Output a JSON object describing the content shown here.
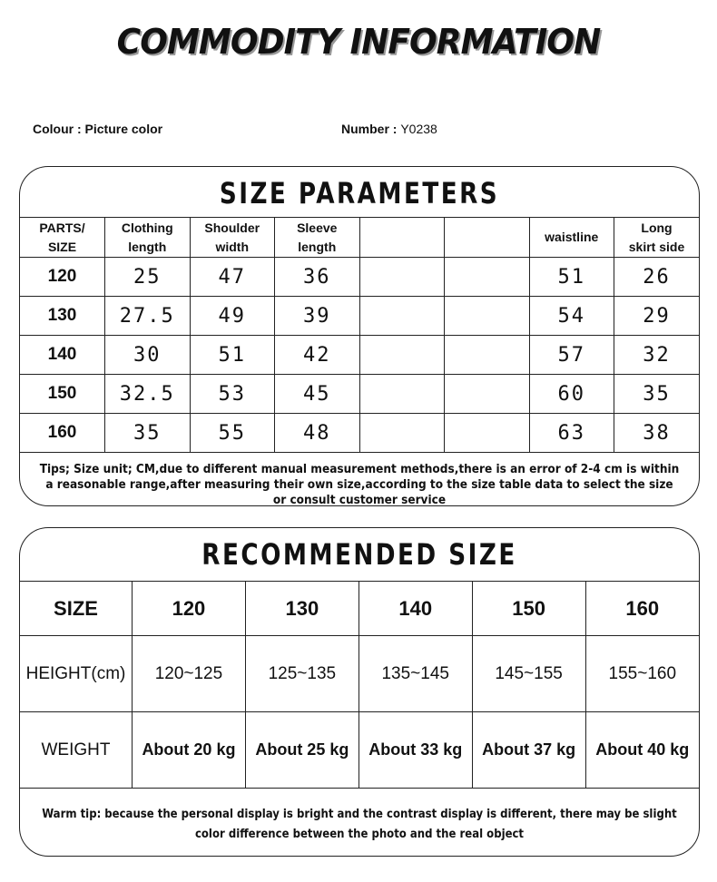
{
  "title": "COMMODITY INFORMATION",
  "colour": "Colour : Picture color",
  "number_label": "Number : ",
  "number": "Y0238",
  "size_parameters": {
    "title": "SIZE PARAMETERS",
    "headers": [
      [
        "PARTS/",
        "SIZE"
      ],
      [
        "Clothing",
        "length"
      ],
      [
        "Shoulder",
        "width"
      ],
      [
        "Sleeve",
        "length"
      ],
      [
        "",
        ""
      ],
      [
        "",
        ""
      ],
      [
        "waistline",
        ""
      ],
      [
        "Long",
        "skirt side"
      ]
    ],
    "rows": [
      [
        "120",
        "25",
        "47",
        "36",
        "",
        "",
        "51",
        "26"
      ],
      [
        "130",
        "27.5",
        "49",
        "39",
        "",
        "",
        "54",
        "29"
      ],
      [
        "140",
        "30",
        "51",
        "42",
        "",
        "",
        "57",
        "32"
      ],
      [
        "150",
        "32.5",
        "53",
        "45",
        "",
        "",
        "60",
        "35"
      ],
      [
        "160",
        "35",
        "55",
        "48",
        "",
        "",
        "63",
        "38"
      ]
    ],
    "tips": "Tips; Size unit; CM,due to different manual measurement methods,there is an error of 2-4 cm is within a reasonable range,after measuring their own size,according to the size table data to select the size or consult customer service"
  },
  "recommended": {
    "title": "RECOMMENDED SIZE",
    "rows": [
      [
        "SIZE",
        "120",
        "130",
        "140",
        "150",
        "160"
      ],
      [
        "HEIGHT(cm)",
        "120~125",
        "125~135",
        "135~145",
        "145~155",
        "155~160"
      ],
      [
        "WEIGHT",
        "About 20 kg",
        "About 25 kg",
        "About 33 kg",
        "About 37 kg",
        "About 40 kg"
      ]
    ],
    "tip": "Warm tip: because the personal display is bright and the contrast display is different, there may be slight color difference between the photo and the real object"
  }
}
